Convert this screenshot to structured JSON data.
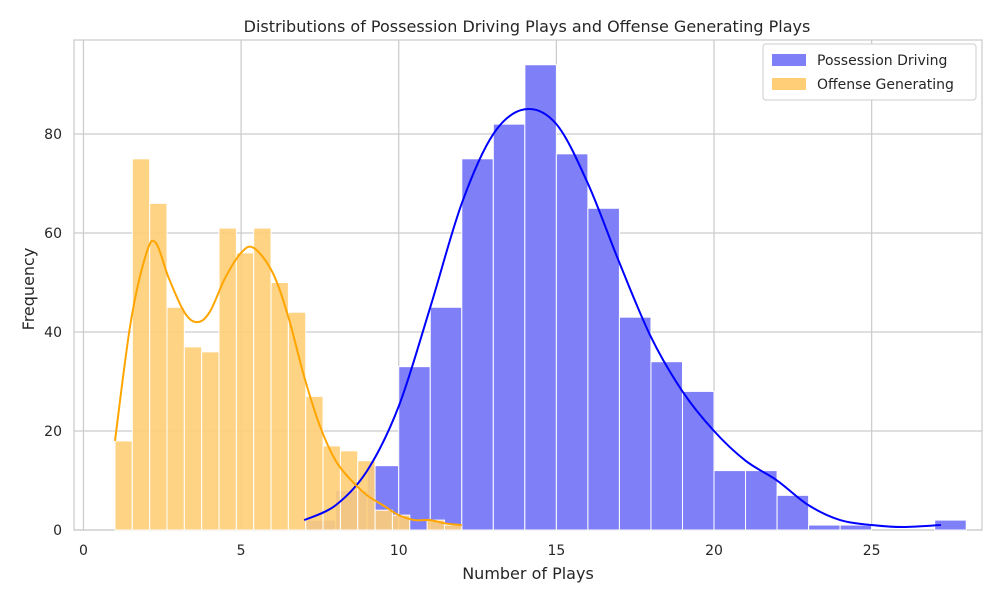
{
  "chart_data": {
    "type": "histogram",
    "title": "Distributions of Possession Driving Plays and Offense Generating Plays",
    "xlabel": "Number of Plays",
    "ylabel": "Frequency",
    "xlim": [
      -0.3,
      28.5
    ],
    "ylim": [
      0,
      99
    ],
    "x_ticks": [
      0,
      5,
      10,
      15,
      20,
      25
    ],
    "y_ticks": [
      0,
      20,
      40,
      60,
      80
    ],
    "grid": true,
    "legend_position": "top-right",
    "series": [
      {
        "name": "Possession Driving",
        "color": "#0000ff",
        "bar_color": "#7f7ff7",
        "bin_edges": [
          7,
          8,
          9,
          10,
          11,
          12,
          13,
          14,
          15,
          16,
          17,
          18,
          19,
          20,
          21,
          22,
          23,
          24,
          25,
          26,
          27,
          28
        ],
        "counts": [
          2,
          8,
          13,
          33,
          45,
          75,
          82,
          94,
          76,
          65,
          43,
          34,
          28,
          12,
          12,
          7,
          1,
          1,
          0,
          0,
          2
        ],
        "kde": [
          [
            7.0,
            2
          ],
          [
            8.0,
            5
          ],
          [
            9.0,
            12
          ],
          [
            10.0,
            25
          ],
          [
            11.0,
            45
          ],
          [
            12.0,
            66
          ],
          [
            13.0,
            80
          ],
          [
            14.0,
            85
          ],
          [
            15.0,
            82
          ],
          [
            16.0,
            70
          ],
          [
            17.0,
            54
          ],
          [
            18.0,
            39
          ],
          [
            19.0,
            28
          ],
          [
            20.0,
            20
          ],
          [
            21.0,
            14
          ],
          [
            22.0,
            10
          ],
          [
            23.0,
            5
          ],
          [
            24.0,
            2
          ],
          [
            25.0,
            1
          ],
          [
            26.0,
            0.6
          ],
          [
            27.2,
            1
          ]
        ]
      },
      {
        "name": "Offense Generating",
        "color": "#ffa500",
        "bar_color": "#ffce77",
        "bin_edges": [
          1.0,
          1.55,
          2.1,
          2.65,
          3.2,
          3.75,
          4.3,
          4.85,
          5.4,
          5.95,
          6.5,
          7.05,
          7.6,
          8.15,
          8.7,
          9.25,
          9.8,
          10.35,
          10.9,
          11.45,
          12.0
        ],
        "counts": [
          18,
          75,
          66,
          45,
          37,
          36,
          61,
          56,
          61,
          50,
          44,
          27,
          17,
          16,
          14,
          4,
          3,
          0,
          2,
          1
        ],
        "kde": [
          [
            1.0,
            18
          ],
          [
            1.5,
            42
          ],
          [
            2.0,
            56
          ],
          [
            2.3,
            58
          ],
          [
            2.7,
            51
          ],
          [
            3.2,
            44
          ],
          [
            3.6,
            42
          ],
          [
            4.0,
            44
          ],
          [
            4.5,
            51
          ],
          [
            5.0,
            56
          ],
          [
            5.4,
            57
          ],
          [
            6.0,
            52
          ],
          [
            6.5,
            43
          ],
          [
            7.0,
            31
          ],
          [
            7.5,
            21
          ],
          [
            8.0,
            14
          ],
          [
            8.5,
            10
          ],
          [
            9.0,
            7
          ],
          [
            9.5,
            5
          ],
          [
            10.0,
            3
          ],
          [
            10.5,
            2
          ],
          [
            11.0,
            2
          ],
          [
            11.5,
            1.3
          ],
          [
            12.0,
            1
          ]
        ]
      }
    ]
  }
}
